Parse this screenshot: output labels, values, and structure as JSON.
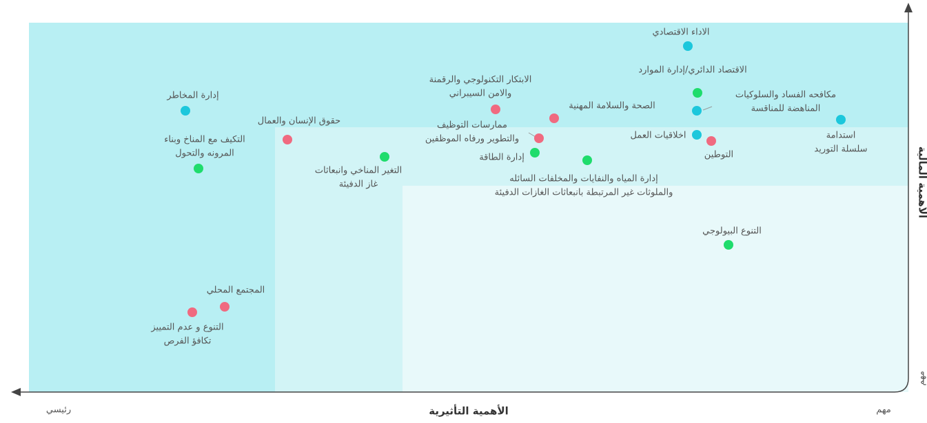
{
  "axes": {
    "x_label": "الأهمية التأثيرية",
    "x_low": "رئيسي",
    "x_high": "مهم",
    "y_label": "الأهمية المالية",
    "y_high": "مهم"
  },
  "nodes": [
    {
      "lines": [
        "الاداء الاقتصادي"
      ],
      "color": "#1cc7dc"
    },
    {
      "lines": [
        "الاقتصاد الدائري/إدارة الموارد"
      ],
      "color": "#1fdc6c"
    },
    {
      "lines": [
        "مكافحه الفساد والسلوكيات",
        "المناهضة للمناقسة"
      ],
      "color": "#1cc7dc"
    },
    {
      "lines": [
        "استدامة",
        "سلسلة التوريد"
      ],
      "color": "#1cc7dc"
    },
    {
      "lines": [
        "اخلاقيات العمل"
      ],
      "color": "#1cc7dc"
    },
    {
      "lines": [
        "التوطين"
      ],
      "color": "#f06a80"
    },
    {
      "lines": [
        "الصحة والسلامة المهنية"
      ],
      "color": "#f06a80"
    },
    {
      "lines": [
        "الابتكار التكنولوجي والرقمنة",
        "والامن السيبراني"
      ],
      "color": "#f06a80"
    },
    {
      "lines": [
        "ممارسات التوظيف",
        "والتطوير ورفاه الموظفين"
      ],
      "color": "#f06a80"
    },
    {
      "lines": [
        "إدارة الطاقة"
      ],
      "color": "#1fdc6c"
    },
    {
      "lines": [
        "إدارة المياه والنفايات والمخلفات السائله",
        "والملوثات غير المرتبطة بانبعاثات الغازات الدفيئة"
      ],
      "color": "#1fdc6c"
    },
    {
      "lines": [
        "التغير المناخي وانبعاثات",
        "غاز الدفيئة"
      ],
      "color": "#1fdc6c"
    },
    {
      "lines": [
        "حقوق الإنسان والعمال"
      ],
      "color": "#f06a80"
    },
    {
      "lines": [
        "إدارة المخاطر"
      ],
      "color": "#1cc7dc"
    },
    {
      "lines": [
        "التكيف مع المناخ وبناء",
        "المرونه والتحول"
      ],
      "color": "#1fdc6c"
    },
    {
      "lines": [
        "التنوع البيولوجي"
      ],
      "color": "#1fdc6c"
    },
    {
      "lines": [
        "المجتمع المحلي"
      ],
      "color": "#f06a80"
    },
    {
      "lines": [
        "التنوع و عدم التمييز",
        "تكافؤ الفرص"
      ],
      "color": "#f06a80"
    }
  ]
}
